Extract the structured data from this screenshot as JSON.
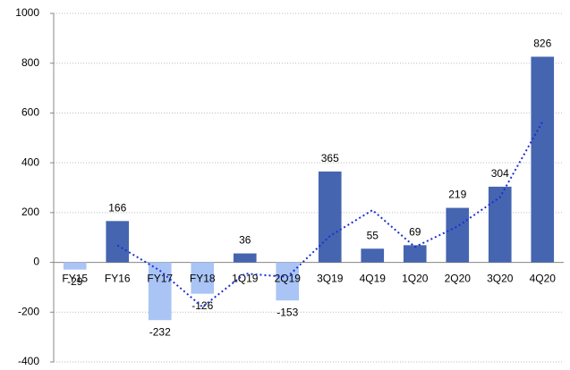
{
  "chart_data": {
    "type": "bar",
    "categories": [
      "FY15",
      "FY16",
      "FY17",
      "FY18",
      "1Q19",
      "2Q19",
      "3Q19",
      "4Q19",
      "1Q20",
      "2Q20",
      "3Q20",
      "4Q20"
    ],
    "values": [
      -29,
      166,
      -232,
      -126,
      36,
      -153,
      365,
      55,
      69,
      219,
      304,
      826
    ],
    "color": "#4565b0",
    "negative_color": "#a9c4f5",
    "trend_line": {
      "values": [
        null,
        68.5,
        -33,
        -179,
        -45,
        -58.5,
        106,
        210,
        62,
        144,
        261.5,
        565
      ],
      "color": "#1f2fd0",
      "dash": "dotted"
    },
    "ylim": [
      -400,
      1000
    ],
    "yticks": [
      -400,
      -200,
      0,
      200,
      400,
      600,
      800,
      1000
    ],
    "grid": true
  }
}
